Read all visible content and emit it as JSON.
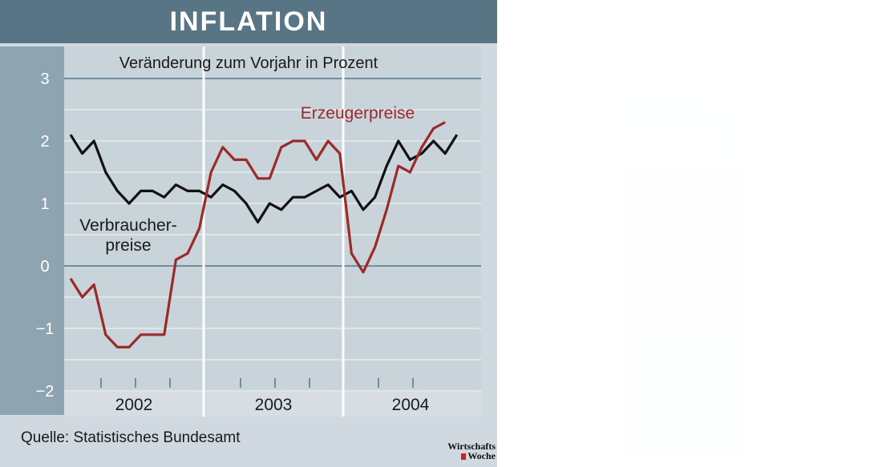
{
  "header": {
    "title": "INFLATION"
  },
  "footer": {
    "source": "Quelle: Statistisches Bundesamt",
    "logo_line1": "Wirtschafts",
    "logo_line2": "Woche"
  },
  "colors": {
    "title_bg": "#577585",
    "panel_bg": "#d0d9df",
    "producer": "#9b2a2a",
    "consumer": "#111111"
  },
  "chart_data": {
    "type": "line",
    "title": "Veränderung zum Vorjahr in Prozent",
    "ylim": [
      -2,
      3
    ],
    "yticks": [
      {
        "value": -2,
        "label": "−2"
      },
      {
        "value": -1,
        "label": "−1"
      },
      {
        "value": 0,
        "label": "0"
      },
      {
        "value": 1,
        "label": "1"
      },
      {
        "value": 2,
        "label": "2"
      },
      {
        "value": 3,
        "label": "3"
      }
    ],
    "years": [
      "2002",
      "2003",
      "2004"
    ],
    "series": [
      {
        "name": "Verbraucherpreise",
        "label_lines": [
          "Verbraucher-",
          "preise"
        ],
        "values": [
          2.1,
          1.8,
          2.0,
          1.5,
          1.2,
          1.0,
          1.2,
          1.2,
          1.1,
          1.3,
          1.2,
          1.2,
          1.1,
          1.3,
          1.2,
          1.0,
          0.7,
          1.0,
          0.9,
          1.1,
          1.1,
          1.2,
          1.3,
          1.1,
          1.2,
          0.9,
          1.1,
          1.6,
          2.0,
          1.7,
          1.8,
          2.0,
          1.8,
          2.1
        ]
      },
      {
        "name": "Erzeugerpreise",
        "label_lines": [
          "Erzeugerpreise"
        ],
        "values": [
          -0.2,
          -0.5,
          -0.3,
          -1.1,
          -1.3,
          -1.3,
          -1.1,
          -1.1,
          -1.1,
          0.1,
          0.2,
          0.6,
          1.5,
          1.9,
          1.7,
          1.7,
          1.4,
          1.4,
          1.9,
          2.0,
          2.0,
          1.7,
          2.0,
          1.8,
          0.2,
          -0.1,
          0.3,
          0.9,
          1.6,
          1.5,
          1.9,
          2.2,
          2.3
        ]
      }
    ]
  }
}
